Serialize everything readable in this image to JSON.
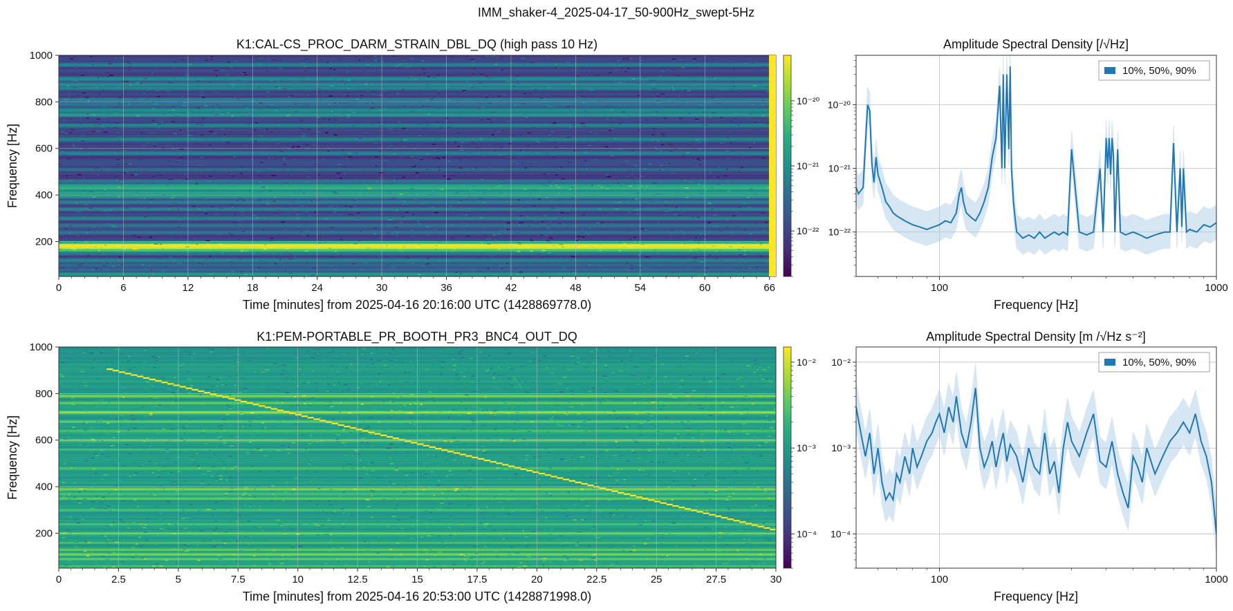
{
  "figure": {
    "suptitle": "IMM_shaker-4_2025-04-17_50-900Hz_swept-5Hz"
  },
  "colors": {
    "series": "#1f77b4",
    "band": "#a6c8e6",
    "grid_on_image": "#b8c2c8",
    "grid_on_axes": "#c9c9c9",
    "viridis": [
      "#440154",
      "#472c7a",
      "#3b518b",
      "#2c718e",
      "#21908d",
      "#27ad81",
      "#5cc863",
      "#aadc32",
      "#fde725"
    ]
  },
  "chart_data": [
    {
      "type": "heatmap",
      "title": "K1:CAL-CS_PROC_DARM_STRAIN_DBL_DQ (high pass 10 Hz)",
      "xlabel": "Time [minutes] from 2025-04-16 20:16:00 UTC (1428869778.0)",
      "ylabel": "Frequency [Hz]",
      "xlim": [
        0,
        66.6
      ],
      "ylim": [
        50,
        1000
      ],
      "xticks": [
        "0",
        "6",
        "12",
        "18",
        "24",
        "30",
        "36",
        "42",
        "48",
        "54",
        "60",
        "66"
      ],
      "xtick_values": [
        0,
        6,
        12,
        18,
        24,
        30,
        36,
        42,
        48,
        54,
        60,
        66
      ],
      "yticks": [
        "200",
        "400",
        "600",
        "800",
        "1000"
      ],
      "ytick_values": [
        200,
        400,
        600,
        800,
        1000
      ],
      "colorbar": {
        "scale": "log",
        "min": 2e-23,
        "max": 5e-20,
        "ticks": [
          "10⁻²²",
          "10⁻²¹",
          "10⁻²⁰"
        ],
        "tick_values": [
          1e-22,
          1e-21,
          1e-20
        ]
      },
      "background_level": 0.2,
      "bands": [
        {
          "f": 60,
          "level": 0.55
        },
        {
          "f": 80,
          "level": 0.35
        },
        {
          "f": 100,
          "level": 0.35
        },
        {
          "f": 120,
          "level": 0.45
        },
        {
          "f": 150,
          "level": 0.4
        },
        {
          "f": 165,
          "level": 0.75
        },
        {
          "f": 175,
          "level": 0.95
        },
        {
          "f": 185,
          "level": 0.98
        },
        {
          "f": 195,
          "level": 0.6
        },
        {
          "f": 240,
          "level": 0.4
        },
        {
          "f": 270,
          "level": 0.4
        },
        {
          "f": 300,
          "level": 0.45
        },
        {
          "f": 340,
          "level": 0.45
        },
        {
          "f": 370,
          "level": 0.45
        },
        {
          "f": 395,
          "level": 0.55
        },
        {
          "f": 410,
          "level": 0.6
        },
        {
          "f": 430,
          "level": 0.65
        },
        {
          "f": 440,
          "level": 0.6
        },
        {
          "f": 460,
          "level": 0.4
        },
        {
          "f": 510,
          "level": 0.35
        },
        {
          "f": 580,
          "level": 0.45
        },
        {
          "f": 640,
          "level": 0.45
        },
        {
          "f": 700,
          "level": 0.45
        },
        {
          "f": 745,
          "level": 0.55
        },
        {
          "f": 765,
          "level": 0.5
        },
        {
          "f": 790,
          "level": 0.4
        },
        {
          "f": 810,
          "level": 0.45
        },
        {
          "f": 860,
          "level": 0.45
        },
        {
          "f": 875,
          "level": 0.5
        },
        {
          "f": 900,
          "level": 0.5
        },
        {
          "f": 960,
          "level": 0.45
        }
      ]
    },
    {
      "type": "line",
      "title": "Amplitude Spectral Density [/√Hz]",
      "xlabel": "Frequency [Hz]",
      "xscale": "log",
      "yscale": "log",
      "xlim": [
        50,
        1000
      ],
      "ylim": [
        2e-23,
        6e-20
      ],
      "xticks": [
        "100",
        "1000"
      ],
      "xtick_values": [
        100,
        1000
      ],
      "yticks": [
        "10⁻²²",
        "10⁻²¹",
        "10⁻²⁰"
      ],
      "ytick_values": [
        1e-22,
        1e-21,
        1e-20
      ],
      "legend": {
        "label": "10%, 50%, 90%",
        "position": "top-right"
      },
      "series": [
        {
          "x": [
            50,
            51,
            53,
            55,
            56,
            57,
            58,
            59,
            60,
            62,
            64,
            66,
            68,
            70,
            75,
            80,
            85,
            90,
            95,
            100,
            105,
            110,
            115,
            118,
            120,
            122,
            125,
            130,
            135,
            140,
            145,
            150,
            155,
            160,
            165,
            168,
            170,
            172,
            175,
            178,
            180,
            182,
            185,
            188,
            190,
            195,
            200,
            210,
            220,
            230,
            240,
            250,
            260,
            270,
            280,
            290,
            300,
            320,
            340,
            360,
            380,
            390,
            400,
            405,
            410,
            415,
            420,
            425,
            430,
            440,
            450,
            470,
            500,
            530,
            560,
            600,
            650,
            680,
            700,
            720,
            740,
            750,
            760,
            780,
            800,
            850,
            900,
            950,
            1000
          ],
          "y": [
            5e-22,
            4e-22,
            5e-22,
            1e-20,
            8e-21,
            1.2e-21,
            6e-22,
            1.5e-21,
            8e-22,
            5e-22,
            3e-22,
            2.5e-22,
            2e-22,
            1.8e-22,
            1.5e-22,
            1.3e-22,
            1.2e-22,
            1.1e-22,
            1.2e-22,
            1.3e-22,
            1.5e-22,
            1.4e-22,
            2e-22,
            4e-22,
            5e-22,
            3e-22,
            2e-22,
            1.7e-22,
            1.5e-22,
            2e-22,
            3e-22,
            5e-22,
            1.5e-21,
            3e-21,
            2e-20,
            1e-21,
            3e-20,
            1e-21,
            3e-20,
            2e-21,
            4e-20,
            1e-21,
            3e-22,
            1.5e-22,
            1e-22,
            9e-23,
            8e-23,
            9e-23,
            8e-23,
            1e-22,
            8e-23,
            9e-23,
            1e-22,
            9e-23,
            1e-22,
            9e-23,
            2e-21,
            1e-22,
            9e-23,
            1e-22,
            1e-21,
            1e-22,
            3e-21,
            1e-21,
            3e-21,
            8e-22,
            3e-21,
            1.5e-21,
            1e-22,
            2e-21,
            1e-22,
            9e-23,
            1e-22,
            9e-23,
            8e-23,
            9e-23,
            1e-22,
            1e-22,
            2.5e-21,
            1e-22,
            1e-21,
            1.2e-22,
            1e-21,
            1e-22,
            1.1e-22,
            1e-22,
            1.3e-22,
            1.2e-22,
            1.4e-22
          ]
        }
      ]
    },
    {
      "type": "heatmap",
      "title": "K1:PEM-PORTABLE_PR_BOOTH_PR3_BNC4_OUT_DQ",
      "xlabel": "Time [minutes] from 2025-04-16 20:53:00 UTC (1428871998.0)",
      "ylabel": "Frequency [Hz]",
      "xlim": [
        0,
        30
      ],
      "ylim": [
        50,
        1000
      ],
      "xticks": [
        "0",
        "2.5",
        "5",
        "7.5",
        "10",
        "12.5",
        "15",
        "17.5",
        "20",
        "22.5",
        "25",
        "27.5",
        "30"
      ],
      "xtick_values": [
        0,
        2.5,
        5,
        7.5,
        10,
        12.5,
        15,
        17.5,
        20,
        22.5,
        25,
        27.5,
        30
      ],
      "yticks": [
        "200",
        "400",
        "600",
        "800",
        "1000"
      ],
      "ytick_values": [
        200,
        400,
        600,
        800,
        1000
      ],
      "colorbar": {
        "scale": "log",
        "min": 4e-05,
        "max": 0.015,
        "ticks": [
          "10⁻⁴",
          "10⁻³",
          "10⁻²"
        ],
        "tick_values": [
          0.0001,
          0.001,
          0.01
        ]
      },
      "background_level": 0.55,
      "sweep": {
        "t_start": 2.0,
        "f_start": 905,
        "t_end": 30,
        "f_end": 210
      },
      "bands": [
        {
          "f": 60,
          "level": 0.7
        },
        {
          "f": 90,
          "level": 0.75
        },
        {
          "f": 110,
          "level": 0.8
        },
        {
          "f": 130,
          "level": 0.75
        },
        {
          "f": 160,
          "level": 0.7
        },
        {
          "f": 200,
          "level": 0.75
        },
        {
          "f": 240,
          "level": 0.7
        },
        {
          "f": 280,
          "level": 0.35
        },
        {
          "f": 300,
          "level": 0.7
        },
        {
          "f": 330,
          "level": 0.4
        },
        {
          "f": 350,
          "level": 0.75
        },
        {
          "f": 370,
          "level": 0.7
        },
        {
          "f": 390,
          "level": 0.8
        },
        {
          "f": 420,
          "level": 0.4
        },
        {
          "f": 450,
          "level": 0.35
        },
        {
          "f": 480,
          "level": 0.7
        },
        {
          "f": 510,
          "level": 0.4
        },
        {
          "f": 560,
          "level": 0.7
        },
        {
          "f": 600,
          "level": 0.75
        },
        {
          "f": 640,
          "level": 0.7
        },
        {
          "f": 680,
          "level": 0.75
        },
        {
          "f": 720,
          "level": 0.85
        },
        {
          "f": 760,
          "level": 0.75
        },
        {
          "f": 790,
          "level": 0.8
        },
        {
          "f": 820,
          "level": 0.45
        },
        {
          "f": 850,
          "level": 0.35
        },
        {
          "f": 880,
          "level": 0.35
        },
        {
          "f": 920,
          "level": 0.4
        },
        {
          "f": 960,
          "level": 0.4
        },
        {
          "f": 990,
          "level": 0.3
        }
      ]
    },
    {
      "type": "line",
      "title": "Amplitude Spectral Density [m /√Hz s⁻²]",
      "xlabel": "Frequency [Hz]",
      "xscale": "log",
      "yscale": "log",
      "xlim": [
        50,
        1000
      ],
      "ylim": [
        4e-05,
        0.015
      ],
      "xticks": [
        "100",
        "1000"
      ],
      "xtick_values": [
        100,
        1000
      ],
      "yticks": [
        "10⁻⁴",
        "10⁻³",
        "10⁻²"
      ],
      "ytick_values": [
        0.0001,
        0.001,
        0.01
      ],
      "legend": {
        "label": "10%, 50%, 90%",
        "position": "top-right"
      },
      "series": [
        {
          "x": [
            50,
            52,
            54,
            56,
            58,
            60,
            62,
            64,
            66,
            68,
            70,
            72,
            75,
            78,
            80,
            83,
            86,
            90,
            94,
            97,
            100,
            104,
            108,
            112,
            115,
            120,
            125,
            130,
            135,
            140,
            145,
            150,
            155,
            160,
            165,
            170,
            175,
            180,
            190,
            200,
            210,
            220,
            230,
            240,
            250,
            260,
            270,
            280,
            290,
            300,
            320,
            340,
            360,
            380,
            400,
            420,
            440,
            460,
            480,
            500,
            520,
            540,
            560,
            600,
            640,
            680,
            720,
            760,
            800,
            840,
            880,
            920,
            960,
            1000
          ],
          "y": [
            0.003,
            0.0015,
            0.0008,
            0.0015,
            0.0005,
            0.001,
            0.0004,
            0.00025,
            0.0003,
            0.00025,
            0.0005,
            0.0004,
            0.0008,
            0.0005,
            0.001,
            0.0006,
            0.0008,
            0.0012,
            0.0015,
            0.002,
            0.0025,
            0.0015,
            0.003,
            0.002,
            0.004,
            0.0015,
            0.001,
            0.002,
            0.005,
            0.001,
            0.0006,
            0.0008,
            0.0012,
            0.0006,
            0.001,
            0.0015,
            0.0007,
            0.0011,
            0.0008,
            0.0004,
            0.001,
            0.0006,
            0.0005,
            0.0015,
            0.0005,
            0.0007,
            0.0003,
            0.001,
            0.002,
            0.0012,
            0.0008,
            0.0015,
            0.0025,
            0.0007,
            0.0006,
            0.0012,
            0.0005,
            0.0003,
            0.0002,
            0.0008,
            0.0006,
            0.0004,
            0.001,
            0.0005,
            0.0008,
            0.0012,
            0.0015,
            0.002,
            0.0015,
            0.0025,
            0.0012,
            0.0008,
            0.0004,
            0.0001
          ]
        }
      ]
    }
  ]
}
